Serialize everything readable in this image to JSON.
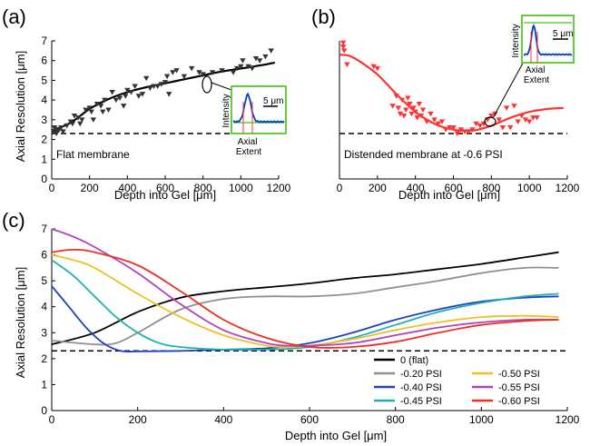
{
  "panels": [
    {
      "letter": "(a)",
      "xlabel": "Depth into Gel [μm]",
      "ylabel": "Axial Resolution [μm]",
      "label": "Flat membrane",
      "inset": {
        "ylabel": "Intensity",
        "xlabel": "Axial\nExtent",
        "scale": "5 μm",
        "color": "#0040c0"
      }
    },
    {
      "letter": "(b)",
      "xlabel": "Depth into Gel [μm]",
      "ylabel": "",
      "label": "Distended membrane at -0.6 PSI",
      "inset": {
        "ylabel": "Intensity",
        "xlabel": "Axial\nExtent",
        "scale": "5 μm",
        "color": "#0040c0"
      }
    },
    {
      "letter": "(c)",
      "xlabel": "Depth into Gel [μm]",
      "ylabel": "Axial Resolution [μm]",
      "label": ""
    }
  ],
  "chart_data": [
    {
      "panel": "a",
      "type": "scatter",
      "xlabel": "Depth into Gel [μm]",
      "ylabel": "Axial Resolution [μm]",
      "xlim": [
        0,
        1200
      ],
      "ylim": [
        0,
        7
      ],
      "xticks": [
        0,
        200,
        400,
        600,
        800,
        1000,
        1200
      ],
      "yticks": [
        0,
        1,
        2,
        3,
        4,
        5,
        6,
        7
      ],
      "reference_line": 2.3,
      "annotation": "Flat membrane",
      "marker_color": "#333333",
      "fit_color": "#000000",
      "points": [
        [
          10,
          2.4
        ],
        [
          15,
          2.6
        ],
        [
          20,
          2.5
        ],
        [
          25,
          2.3
        ],
        [
          30,
          2.4
        ],
        [
          40,
          2.5
        ],
        [
          50,
          2.6
        ],
        [
          60,
          2.4
        ],
        [
          80,
          2.7
        ],
        [
          100,
          2.9
        ],
        [
          110,
          2.8
        ],
        [
          120,
          3.2
        ],
        [
          140,
          3.1
        ],
        [
          150,
          2.8
        ],
        [
          160,
          3.0
        ],
        [
          180,
          3.5
        ],
        [
          200,
          3.6
        ],
        [
          210,
          3.4
        ],
        [
          220,
          3.0
        ],
        [
          240,
          3.8
        ],
        [
          260,
          3.7
        ],
        [
          270,
          3.4
        ],
        [
          280,
          4.0
        ],
        [
          300,
          3.5
        ],
        [
          320,
          4.4
        ],
        [
          340,
          4.0
        ],
        [
          360,
          4.1
        ],
        [
          380,
          3.7
        ],
        [
          390,
          4.2
        ],
        [
          400,
          4.5
        ],
        [
          420,
          4.4
        ],
        [
          440,
          4.7
        ],
        [
          460,
          4.2
        ],
        [
          480,
          4.3
        ],
        [
          500,
          5.1
        ],
        [
          520,
          4.6
        ],
        [
          540,
          4.7
        ],
        [
          560,
          4.7
        ],
        [
          580,
          4.8
        ],
        [
          600,
          4.9
        ],
        [
          610,
          5.2
        ],
        [
          620,
          4.3
        ],
        [
          640,
          5.4
        ],
        [
          660,
          5.5
        ],
        [
          700,
          5.2
        ],
        [
          740,
          5.6
        ],
        [
          780,
          5.4
        ],
        [
          800,
          5.3
        ],
        [
          850,
          5.4
        ],
        [
          900,
          5.5
        ],
        [
          960,
          5.4
        ],
        [
          980,
          5.6
        ],
        [
          1000,
          5.7
        ],
        [
          1010,
          6.0
        ],
        [
          1040,
          5.7
        ],
        [
          1060,
          5.6
        ],
        [
          1080,
          6.1
        ],
        [
          1100,
          6.0
        ],
        [
          1130,
          6.2
        ],
        [
          1160,
          6.5
        ]
      ],
      "fit": [
        [
          0,
          2.45
        ],
        [
          100,
          2.85
        ],
        [
          200,
          3.55
        ],
        [
          300,
          4.05
        ],
        [
          400,
          4.4
        ],
        [
          500,
          4.65
        ],
        [
          600,
          4.85
        ],
        [
          700,
          5.05
        ],
        [
          800,
          5.25
        ],
        [
          900,
          5.45
        ],
        [
          1000,
          5.6
        ],
        [
          1100,
          5.75
        ],
        [
          1180,
          5.9
        ]
      ]
    },
    {
      "panel": "b",
      "type": "scatter",
      "xlabel": "Depth into Gel [μm]",
      "ylabel": "",
      "xlim": [
        0,
        1200
      ],
      "ylim": [
        0,
        7
      ],
      "xticks": [
        0,
        200,
        400,
        600,
        800,
        1000,
        1200
      ],
      "yticks": [],
      "reference_line": 2.3,
      "annotation": "Distended membrane at -0.6 PSI",
      "marker_color": "#ff3333",
      "fit_color": "#ff3333",
      "points": [
        [
          20,
          6.9
        ],
        [
          20,
          6.7
        ],
        [
          25,
          6.5
        ],
        [
          40,
          5.8
        ],
        [
          180,
          5.7
        ],
        [
          200,
          5.6
        ],
        [
          280,
          3.7
        ],
        [
          300,
          4.2
        ],
        [
          310,
          3.6
        ],
        [
          320,
          3.3
        ],
        [
          330,
          4.0
        ],
        [
          340,
          3.2
        ],
        [
          350,
          3.5
        ],
        [
          360,
          4.1
        ],
        [
          370,
          3.8
        ],
        [
          380,
          3.3
        ],
        [
          390,
          3.6
        ],
        [
          400,
          3.4
        ],
        [
          410,
          3.1
        ],
        [
          420,
          3.8
        ],
        [
          430,
          3.2
        ],
        [
          440,
          3.5
        ],
        [
          460,
          2.9
        ],
        [
          480,
          3.3
        ],
        [
          500,
          3.0
        ],
        [
          520,
          2.8
        ],
        [
          540,
          2.9
        ],
        [
          560,
          2.5
        ],
        [
          580,
          2.6
        ],
        [
          600,
          2.6
        ],
        [
          620,
          2.3
        ],
        [
          640,
          2.5
        ],
        [
          660,
          2.4
        ],
        [
          680,
          2.4
        ],
        [
          700,
          2.5
        ],
        [
          720,
          2.8
        ],
        [
          740,
          2.7
        ],
        [
          760,
          2.8
        ],
        [
          780,
          3.0
        ],
        [
          800,
          3.2
        ],
        [
          820,
          3.3
        ],
        [
          840,
          3.0
        ],
        [
          860,
          2.6
        ],
        [
          880,
          3.6
        ],
        [
          900,
          2.6
        ],
        [
          920,
          3.7
        ],
        [
          940,
          2.9
        ],
        [
          960,
          3.2
        ],
        [
          980,
          3.0
        ],
        [
          1000,
          2.9
        ],
        [
          1020,
          3.1
        ],
        [
          1040,
          3.1
        ]
      ],
      "fit": [
        [
          0,
          6.3
        ],
        [
          50,
          6.25
        ],
        [
          100,
          6.0
        ],
        [
          200,
          5.3
        ],
        [
          300,
          4.3
        ],
        [
          400,
          3.4
        ],
        [
          500,
          2.8
        ],
        [
          600,
          2.5
        ],
        [
          700,
          2.45
        ],
        [
          800,
          2.7
        ],
        [
          900,
          3.1
        ],
        [
          1000,
          3.4
        ],
        [
          1100,
          3.55
        ],
        [
          1180,
          3.6
        ]
      ]
    },
    {
      "panel": "c",
      "type": "line",
      "xlabel": "Depth into Gel [μm]",
      "ylabel": "Axial Resolution [μm]",
      "xlim": [
        0,
        1200
      ],
      "ylim": [
        0,
        7
      ],
      "xticks": [
        0,
        200,
        400,
        600,
        800,
        1000,
        1200
      ],
      "yticks": [
        0,
        1,
        2,
        3,
        4,
        5,
        6,
        7
      ],
      "reference_line": 2.3,
      "legend_position": "bottom-right",
      "series": [
        {
          "name": "0 (flat)",
          "color": "#000000",
          "points": [
            [
              0,
              2.55
            ],
            [
              100,
              3.0
            ],
            [
              200,
              3.8
            ],
            [
              300,
              4.35
            ],
            [
              400,
              4.6
            ],
            [
              500,
              4.75
            ],
            [
              600,
              4.9
            ],
            [
              700,
              5.1
            ],
            [
              800,
              5.25
            ],
            [
              900,
              5.45
            ],
            [
              1000,
              5.65
            ],
            [
              1100,
              5.9
            ],
            [
              1180,
              6.1
            ]
          ]
        },
        {
          "name": "-0.20 PSI",
          "color": "#909090",
          "points": [
            [
              0,
              2.7
            ],
            [
              100,
              2.55
            ],
            [
              150,
              2.6
            ],
            [
              200,
              3.0
            ],
            [
              300,
              3.9
            ],
            [
              400,
              4.3
            ],
            [
              500,
              4.4
            ],
            [
              600,
              4.4
            ],
            [
              700,
              4.5
            ],
            [
              800,
              4.75
            ],
            [
              900,
              5.0
            ],
            [
              1000,
              5.3
            ],
            [
              1100,
              5.5
            ],
            [
              1180,
              5.5
            ]
          ]
        },
        {
          "name": "-0.40 PSI",
          "color": "#2040c0",
          "points": [
            [
              0,
              4.8
            ],
            [
              40,
              4.0
            ],
            [
              80,
              3.2
            ],
            [
              120,
              2.6
            ],
            [
              160,
              2.3
            ],
            [
              200,
              2.28
            ],
            [
              300,
              2.3
            ],
            [
              400,
              2.35
            ],
            [
              500,
              2.4
            ],
            [
              600,
              2.6
            ],
            [
              700,
              3.0
            ],
            [
              800,
              3.5
            ],
            [
              900,
              3.9
            ],
            [
              1000,
              4.2
            ],
            [
              1100,
              4.35
            ],
            [
              1180,
              4.4
            ]
          ]
        },
        {
          "name": "-0.45 PSI",
          "color": "#20b0b0",
          "points": [
            [
              0,
              5.8
            ],
            [
              50,
              5.2
            ],
            [
              100,
              4.4
            ],
            [
              150,
              3.6
            ],
            [
              200,
              3.0
            ],
            [
              250,
              2.6
            ],
            [
              300,
              2.45
            ],
            [
              400,
              2.35
            ],
            [
              500,
              2.35
            ],
            [
              600,
              2.45
            ],
            [
              700,
              2.8
            ],
            [
              800,
              3.3
            ],
            [
              900,
              3.8
            ],
            [
              1000,
              4.15
            ],
            [
              1100,
              4.4
            ],
            [
              1180,
              4.5
            ]
          ]
        },
        {
          "name": "-0.50 PSI",
          "color": "#f0c020",
          "points": [
            [
              0,
              6.0
            ],
            [
              50,
              5.8
            ],
            [
              100,
              5.5
            ],
            [
              200,
              4.5
            ],
            [
              300,
              3.6
            ],
            [
              400,
              2.9
            ],
            [
              500,
              2.5
            ],
            [
              550,
              2.45
            ],
            [
              600,
              2.5
            ],
            [
              700,
              2.75
            ],
            [
              800,
              3.1
            ],
            [
              900,
              3.4
            ],
            [
              1000,
              3.6
            ],
            [
              1100,
              3.65
            ],
            [
              1180,
              3.6
            ]
          ]
        },
        {
          "name": "-0.55 PSI",
          "color": "#b040c0",
          "points": [
            [
              0,
              7.0
            ],
            [
              50,
              6.7
            ],
            [
              100,
              6.3
            ],
            [
              200,
              5.3
            ],
            [
              300,
              4.1
            ],
            [
              400,
              3.1
            ],
            [
              500,
              2.6
            ],
            [
              550,
              2.5
            ],
            [
              600,
              2.5
            ],
            [
              700,
              2.6
            ],
            [
              800,
              2.9
            ],
            [
              900,
              3.2
            ],
            [
              1000,
              3.4
            ],
            [
              1100,
              3.5
            ],
            [
              1180,
              3.5
            ]
          ]
        },
        {
          "name": "-0.60 PSI",
          "color": "#ee3020",
          "points": [
            [
              0,
              6.1
            ],
            [
              50,
              6.2
            ],
            [
              100,
              6.1
            ],
            [
              200,
              5.6
            ],
            [
              300,
              4.6
            ],
            [
              400,
              3.5
            ],
            [
              500,
              2.8
            ],
            [
              600,
              2.45
            ],
            [
              700,
              2.45
            ],
            [
              800,
              2.65
            ],
            [
              900,
              3.0
            ],
            [
              1000,
              3.3
            ],
            [
              1100,
              3.45
            ],
            [
              1180,
              3.5
            ]
          ]
        }
      ]
    }
  ]
}
